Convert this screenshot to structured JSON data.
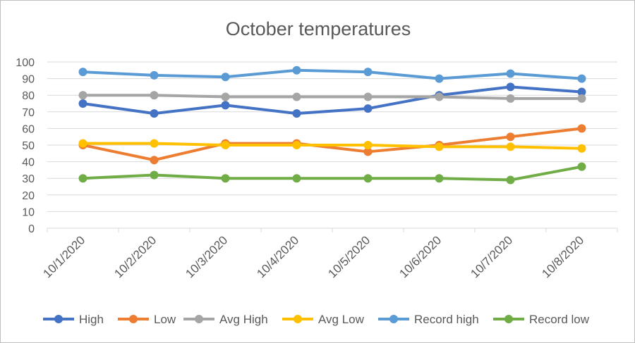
{
  "chart_data": {
    "type": "line",
    "title": "October temperatures",
    "categories": [
      "10/1/2020",
      "10/2/2020",
      "10/3/2020",
      "10/4/2020",
      "10/5/2020",
      "10/6/2020",
      "10/7/2020",
      "10/8/2020"
    ],
    "ylim": [
      0,
      100
    ],
    "yticks": [
      0,
      10,
      20,
      30,
      40,
      50,
      60,
      70,
      80,
      90,
      100
    ],
    "grid": true,
    "legend_position": "bottom",
    "series": [
      {
        "name": "High",
        "color": "#4472c4",
        "values": [
          75,
          69,
          74,
          69,
          72,
          80,
          85,
          82
        ]
      },
      {
        "name": "Low",
        "color": "#ed7d31",
        "values": [
          50,
          41,
          51,
          51,
          46,
          50,
          55,
          60
        ]
      },
      {
        "name": "Avg High",
        "color": "#a5a5a5",
        "values": [
          80,
          80,
          79,
          79,
          79,
          79,
          78,
          78
        ]
      },
      {
        "name": "Avg Low",
        "color": "#ffc000",
        "values": [
          51,
          51,
          50,
          50,
          50,
          49,
          49,
          48
        ]
      },
      {
        "name": "Record high",
        "color": "#5b9bd5",
        "values": [
          94,
          92,
          91,
          95,
          94,
          90,
          93,
          90
        ]
      },
      {
        "name": "Record low",
        "color": "#70ad47",
        "values": [
          30,
          32,
          30,
          30,
          30,
          30,
          29,
          37
        ]
      }
    ]
  }
}
